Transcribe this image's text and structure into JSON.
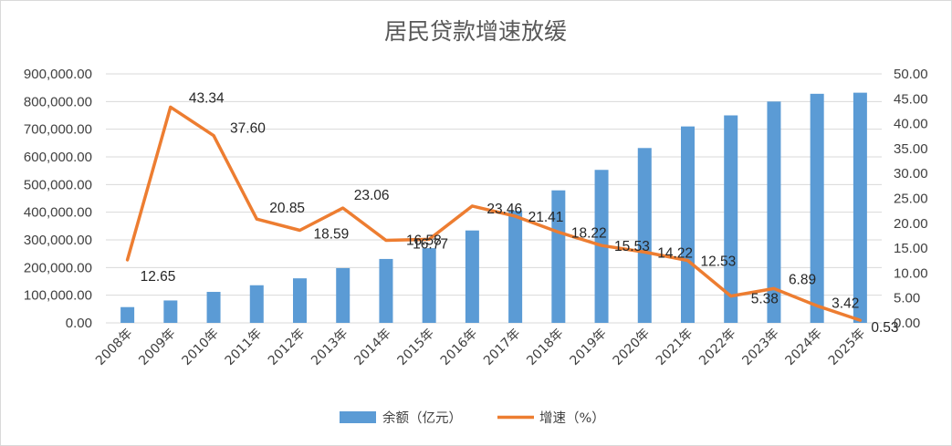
{
  "chart_data": {
    "type": "bar+line",
    "title": "居民贷款增速放缓",
    "categories": [
      "2008年",
      "2009年",
      "2010年",
      "2011年",
      "2012年",
      "2013年",
      "2014年",
      "2015年",
      "2016年",
      "2017年",
      "2018年",
      "2019年",
      "2020年",
      "2021年",
      "2022年",
      "2023年",
      "2024年",
      "2025年"
    ],
    "series": [
      {
        "name": "余额（亿元）",
        "type": "bar",
        "axis": "left",
        "color": "#5b9bd5",
        "values": [
          57000,
          81000,
          112000,
          136000,
          161000,
          198000,
          231000,
          270000,
          334000,
          405000,
          479000,
          553000,
          632000,
          710000,
          750000,
          800000,
          828000,
          832000
        ]
      },
      {
        "name": "增速（%）",
        "type": "line",
        "axis": "right",
        "color": "#ed7d31",
        "values": [
          12.65,
          43.34,
          37.6,
          20.85,
          18.59,
          23.06,
          16.58,
          16.77,
          23.46,
          21.41,
          18.22,
          15.53,
          14.22,
          12.53,
          5.38,
          6.89,
          3.42,
          0.53
        ],
        "labels": [
          "12.65",
          "43.34",
          "37.60",
          "20.85",
          "18.59",
          "23.06",
          "16.58",
          "16.77",
          "23.46",
          "21.41",
          "18.22",
          "15.53",
          "14.22",
          "12.53",
          "5.38",
          "6.89",
          "3.42",
          "0.53"
        ]
      }
    ],
    "y_left": {
      "min": 0,
      "max": 900000,
      "ticks": [
        "0.00",
        "100,000.00",
        "200,000.00",
        "300,000.00",
        "400,000.00",
        "500,000.00",
        "600,000.00",
        "700,000.00",
        "800,000.00",
        "900,000.00"
      ]
    },
    "y_right": {
      "min": 0,
      "max": 50,
      "ticks": [
        "0.00",
        "5.00",
        "10.00",
        "15.00",
        "20.00",
        "25.00",
        "30.00",
        "35.00",
        "40.00",
        "45.00",
        "50.00"
      ]
    },
    "grid": true,
    "legend_position": "bottom"
  }
}
